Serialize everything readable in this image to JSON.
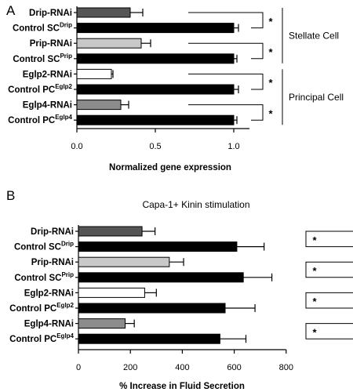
{
  "chart_data": [
    {
      "panel": "A",
      "type": "bar",
      "orientation": "horizontal",
      "title": "",
      "xlabel": "Normalized gene expression",
      "xlim": [
        0,
        1.1
      ],
      "xticks": [
        "0.0",
        "0.5",
        "1.0"
      ],
      "xtick_values": [
        0,
        0.5,
        1.0
      ],
      "categories": [
        {
          "label": "Drip-RNAi",
          "sup": ""
        },
        {
          "label": "Control SC",
          "sup": "Drip"
        },
        {
          "label": "Prip-RNAi",
          "sup": ""
        },
        {
          "label": "Control SC",
          "sup": "Prip"
        },
        {
          "label": "Eglp2-RNAi",
          "sup": ""
        },
        {
          "label": "Control PC",
          "sup": "Eglp2"
        },
        {
          "label": "Eglp4-RNAi",
          "sup": ""
        },
        {
          "label": "Control PC",
          "sup": "Eglp4"
        }
      ],
      "values": [
        0.34,
        1.0,
        0.41,
        1.0,
        0.22,
        1.0,
        0.28,
        1.0
      ],
      "errors": [
        0.08,
        0.03,
        0.06,
        0.02,
        0.01,
        0.03,
        0.05,
        0.02
      ],
      "bar_colors": [
        "#555555",
        "#000000",
        "#c8c8c8",
        "#000000",
        "#ffffff",
        "#000000",
        "#8c8c8c",
        "#000000"
      ],
      "significance": [
        "*",
        "*",
        "*",
        "*"
      ],
      "groups": [
        "Stellate Cell",
        "Principal Cell"
      ]
    },
    {
      "panel": "B",
      "type": "bar",
      "orientation": "horizontal",
      "title": "Capa-1+ Kinin stimulation",
      "xlabel": "% Increase in Fluid Secretion",
      "xlim": [
        0,
        800
      ],
      "xticks": [
        "0",
        "200",
        "400",
        "600",
        "800"
      ],
      "xtick_values": [
        0,
        200,
        400,
        600,
        800
      ],
      "categories": [
        {
          "label": "Drip-RNAi",
          "sup": ""
        },
        {
          "label": "Control SC",
          "sup": "Drip"
        },
        {
          "label": "Prip-RNAi",
          "sup": ""
        },
        {
          "label": "Control SC",
          "sup": "Prip"
        },
        {
          "label": "Eglp2-RNAi",
          "sup": ""
        },
        {
          "label": "Control PC",
          "sup": "Eglp2"
        },
        {
          "label": "Eglp4-RNAi",
          "sup": ""
        },
        {
          "label": "Control PC",
          "sup": "Eglp4"
        }
      ],
      "values": [
        245,
        610,
        350,
        635,
        255,
        565,
        180,
        545
      ],
      "errors": [
        50,
        105,
        55,
        110,
        45,
        115,
        35,
        100
      ],
      "bar_colors": [
        "#555555",
        "#000000",
        "#c8c8c8",
        "#000000",
        "#ffffff",
        "#000000",
        "#8c8c8c",
        "#000000"
      ],
      "significance": [
        "*",
        "*",
        "*",
        "*"
      ]
    }
  ]
}
